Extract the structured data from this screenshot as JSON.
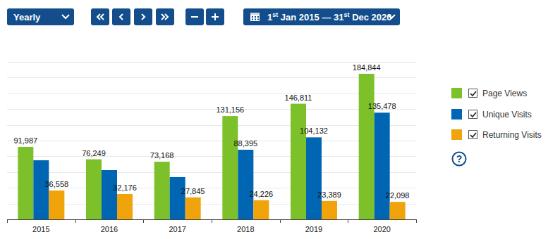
{
  "chart_data": {
    "type": "bar",
    "categories": [
      "2015",
      "2016",
      "2017",
      "2018",
      "2019",
      "2020"
    ],
    "series": [
      {
        "name": "Page Views",
        "color": "#7dc12a",
        "values": [
          91987,
          76249,
          73168,
          131156,
          146811,
          184844
        ],
        "value_labels": [
          "91,987",
          "76,249",
          "73,168",
          "131,156",
          "146,811",
          "184,844"
        ]
      },
      {
        "name": "Unique Visits",
        "color": "#0066b3",
        "values": [
          75000,
          62500,
          53600,
          88395,
          104132,
          135478
        ],
        "value_labels": [
          null,
          null,
          null,
          "88,395",
          "104,132",
          "135,478"
        ]
      },
      {
        "name": "Returning Visits",
        "color": "#f0a30a",
        "values": [
          36558,
          32176,
          27845,
          24226,
          23389,
          22098
        ],
        "value_labels": [
          "36,558",
          "32,176",
          "27,845",
          "24,226",
          "23,389",
          "22,098"
        ]
      }
    ],
    "ylim": [
      0,
      200000
    ],
    "yticks": [
      0,
      20000,
      40000,
      60000,
      80000,
      100000,
      120000,
      140000,
      160000,
      180000,
      200000
    ],
    "grid": true,
    "legend": "right",
    "data_labels": true,
    "tick_labels": "x"
  },
  "toolbar": {
    "period": "Yearly",
    "date_range": [
      {
        "text": "1",
        "sup": "st",
        "after": " Jan 2015 — "
      },
      {
        "text": "31",
        "sup": "st",
        "after": " Dec 2020"
      }
    ],
    "help": "?"
  }
}
